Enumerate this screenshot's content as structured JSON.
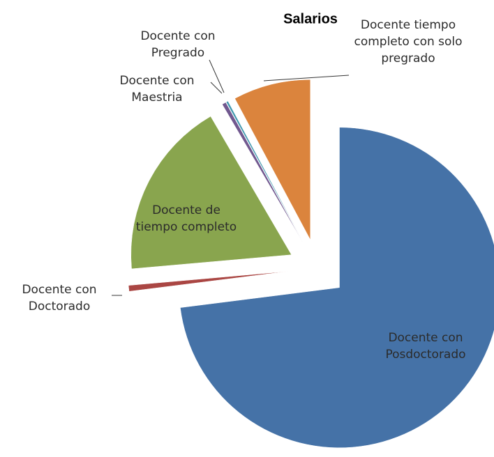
{
  "chart_data": {
    "type": "pie",
    "title": "Salarios",
    "categories": [
      "Docente con Posdoctorado",
      "Docente con Doctorado",
      "Docente de tiempo completo",
      "Docente con Maestria",
      "Docente con Pregrado",
      "Docente tiempo completo con solo pregrado"
    ],
    "values": [
      73,
      0.6,
      18,
      0.4,
      0.2,
      7.8
    ],
    "colors": [
      "#4572a7",
      "#aa4643",
      "#89a54e",
      "#71588f",
      "#4198af",
      "#db843d"
    ]
  }
}
